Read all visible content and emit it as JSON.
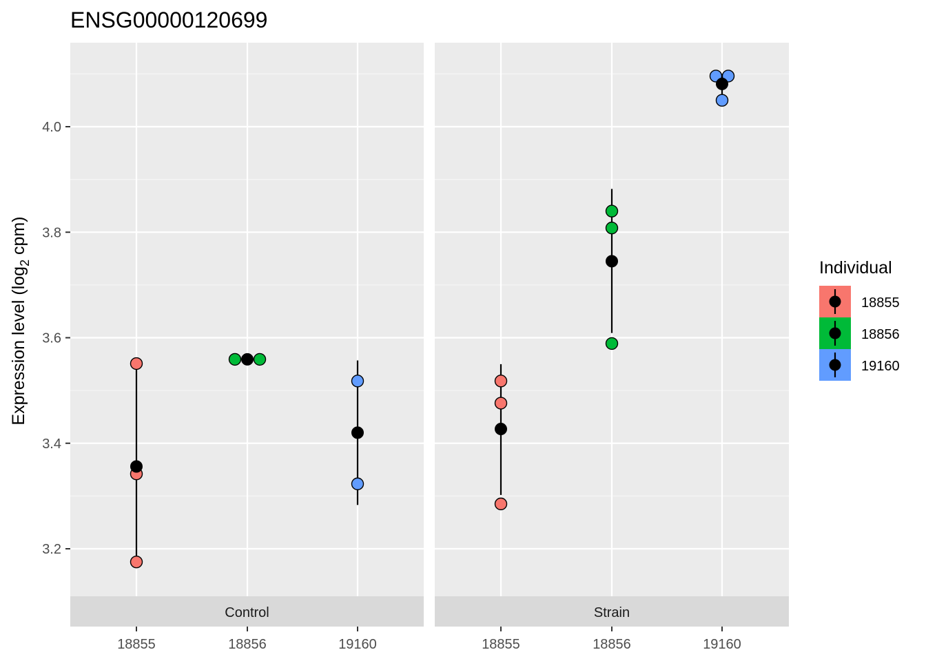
{
  "chart_data": {
    "type": "scatter",
    "title": "ENSG00000120699",
    "xlabel": "",
    "ylabel": {
      "prefix": "Expression level (log",
      "sub": "2",
      "suffix": " cpm)"
    },
    "ylim": [
      3.1,
      4.12
    ],
    "y_ticks": [
      3.2,
      3.4,
      3.6,
      3.8,
      4.0
    ],
    "y_tick_labels": [
      "3.2",
      "3.4",
      "3.6",
      "3.8",
      "4.0"
    ],
    "categories": [
      "18855",
      "18856",
      "19160"
    ],
    "grid": true,
    "legend": {
      "title": "Individual",
      "position": "right",
      "entries": [
        {
          "label": "18855",
          "color": "#F8766D"
        },
        {
          "label": "18856",
          "color": "#00BA38"
        },
        {
          "label": "19160",
          "color": "#619CFF"
        }
      ]
    },
    "facets": [
      {
        "label": "Control",
        "groups": [
          {
            "individual": "18855",
            "points": [
              3.551,
              3.342,
              3.175
            ],
            "mean": 3.356,
            "range": [
              3.175,
              3.551
            ]
          },
          {
            "individual": "18856",
            "points": [
              3.559,
              3.559
            ],
            "mean": 3.559,
            "range": [
              3.559,
              3.559
            ]
          },
          {
            "individual": "19160",
            "points": [
              3.518,
              3.323
            ],
            "mean": 3.42,
            "range": [
              3.283,
              3.557
            ]
          }
        ]
      },
      {
        "label": "Strain",
        "groups": [
          {
            "individual": "18855",
            "points": [
              3.518,
              3.476,
              3.285
            ],
            "mean": 3.427,
            "range": [
              3.302,
              3.55
            ]
          },
          {
            "individual": "18856",
            "points": [
              3.84,
              3.808,
              3.589
            ],
            "mean": 3.745,
            "range": [
              3.609,
              3.882
            ]
          },
          {
            "individual": "19160",
            "points": [
              4.096,
              4.096,
              4.05
            ],
            "mean": 4.081,
            "range": [
              4.062,
              4.1
            ]
          }
        ]
      }
    ]
  }
}
